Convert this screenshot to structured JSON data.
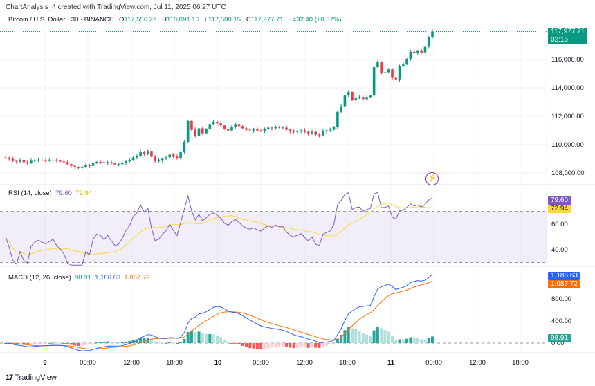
{
  "header": "ChartAnalysis_4 created with TradingView.com, Jul 11, 2025 06:27 UTC",
  "symbol": {
    "name": "Bitcoin / U.S. Dollar · 30 · BINANCE",
    "o_label": "O",
    "o": "117,556.22",
    "h_label": "H",
    "h": "118,091.16",
    "l_label": "L",
    "l": "117,500.15",
    "c_label": "C",
    "c": "117,977.71",
    "change": "+432.40 (+0.37%)"
  },
  "price_tag": {
    "value": "117,977.71",
    "countdown": "02:16"
  },
  "rsi": {
    "label": "RSI (14, close)",
    "value": "79.60",
    "ma": "72.94"
  },
  "macd": {
    "label": "MACD (12, 26, close)",
    "hist": "98.91",
    "macd": "1,186.63",
    "signal": "1,087.72"
  },
  "time_labels": [
    "9",
    "06:00",
    "12:00",
    "18:00",
    "10",
    "06:00",
    "12:00",
    "18:00",
    "11",
    "06:00",
    "12:00",
    "18:00"
  ],
  "brand": "TradingView",
  "colors": {
    "up": "#089981",
    "down": "#f23645",
    "rsi": "#7e57c2",
    "rsi_ma": "#fdd835",
    "macd": "#2962ff",
    "signal": "#ff6d00"
  },
  "chart_data": [
    {
      "type": "candlestick",
      "title": "Bitcoin / U.S. Dollar · 30 · BINANCE",
      "interval_minutes": 30,
      "y_ticks": [
        "108,000.00",
        "110,000.00",
        "112,000.00",
        "114,000.00",
        "116,000.00"
      ],
      "ylim": [
        107700,
        118500
      ],
      "close": [
        109050,
        108980,
        108850,
        108800,
        108880,
        108760,
        108720,
        108860,
        108900,
        108920,
        108900,
        108880,
        108900,
        108920,
        108860,
        108820,
        108760,
        108620,
        108500,
        108400,
        108350,
        108420,
        108560,
        108500,
        108700,
        108780,
        108760,
        108700,
        108760,
        108680,
        108600,
        108620,
        108700,
        108820,
        108900,
        109100,
        109200,
        109460,
        109360,
        109500,
        109150,
        108830,
        108870,
        109000,
        109100,
        109300,
        109150,
        109020,
        109460,
        110200,
        111660,
        111050,
        110600,
        111150,
        110800,
        111100,
        111450,
        111600,
        111500,
        111350,
        111100,
        111000,
        111250,
        111450,
        111300,
        111150,
        111050,
        111000,
        111080,
        111000,
        110950,
        111100,
        111200,
        111150,
        111250,
        111200,
        111200,
        111050,
        110950,
        110900,
        110950,
        111000,
        110900,
        110800,
        110900,
        110700,
        110650,
        110950,
        111000,
        111050,
        111250,
        112300,
        112700,
        113460,
        113700,
        113120,
        113300,
        113350,
        113200,
        113350,
        113450,
        115460,
        115800,
        115050,
        115100,
        115300,
        114700,
        114600,
        115550,
        115650,
        116050,
        116550,
        116450,
        116600,
        116500,
        116900,
        117556,
        117978
      ]
    },
    {
      "type": "line",
      "title": "RSI (14, close)",
      "y_ticks": [
        "40.00",
        "60.00"
      ],
      "bands": [
        30,
        70
      ],
      "ylim": [
        28,
        90
      ]
    },
    {
      "type": "bar+line",
      "title": "MACD (12, 26, close)",
      "y_ticks": [
        "0.00",
        "400.00",
        "800.00"
      ],
      "ylim": [
        -300,
        1300
      ]
    }
  ]
}
